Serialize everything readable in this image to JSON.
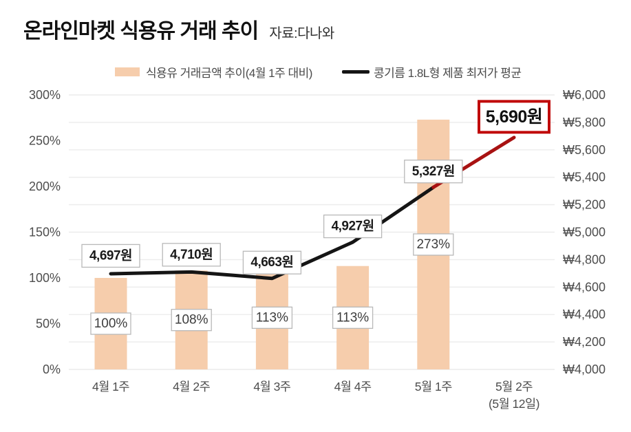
{
  "header": {
    "title": "온라인마켓 식용유 거래 추이",
    "source": "자료:다나와"
  },
  "legend": {
    "bar_label": "식용유 거래금액 추이(4월 1주 대비)",
    "line_label": "콩기름 1.8L형 제품 최저가 평균"
  },
  "colors": {
    "bar": "#F6CDAC",
    "line": "#151515",
    "line_highlight": "#A81212",
    "highlight_box_border": "#C00808",
    "grid": "#ECECEC",
    "axis_text": "#4D4D4D",
    "label_text": "#1A1A1A",
    "percent_text": "#3D3D3D",
    "label_box_border": "#B8B8B8"
  },
  "chart_data": {
    "type": "combo-bar-line",
    "title": "온라인마켓 식용유 거래 추이",
    "source": "자료:다나와",
    "categories": [
      "4월 1주",
      "4월 2주",
      "4월 3주",
      "4월 4주",
      "5월 1주",
      "5월 2주"
    ],
    "last_category_note": "(5월 12일)",
    "series": [
      {
        "name": "식용유 거래금액 추이(4월 1주 대비)",
        "type": "bar",
        "axis": "left",
        "unit": "%",
        "values": [
          100,
          108,
          113,
          113,
          273,
          null
        ],
        "labels": [
          "100%",
          "108%",
          "113%",
          "113%",
          "273%",
          null
        ]
      },
      {
        "name": "콩기름 1.8L형 제품 최저가 평균",
        "type": "line",
        "axis": "right",
        "unit": "원",
        "values": [
          4697,
          4710,
          4663,
          4927,
          5327,
          5690
        ],
        "labels": [
          "4,697원",
          "4,710원",
          "4,663원",
          "4,927원",
          "5,327원",
          "5,690원"
        ],
        "highlight_last": true
      }
    ],
    "left_axis": {
      "min": 0,
      "max": 300,
      "ticks": [
        "300%",
        "250%",
        "200%",
        "150%",
        "100%",
        "50%",
        "0%"
      ]
    },
    "right_axis": {
      "min": 4000,
      "max": 6000,
      "ticks": [
        "₩6,000",
        "₩5,800",
        "₩5,600",
        "₩5,400",
        "₩5,200",
        "₩5,000",
        "₩4,800",
        "₩4,600",
        "₩4,400",
        "₩4,200",
        "₩4,000"
      ]
    },
    "grid": true,
    "legend_position": "top"
  }
}
